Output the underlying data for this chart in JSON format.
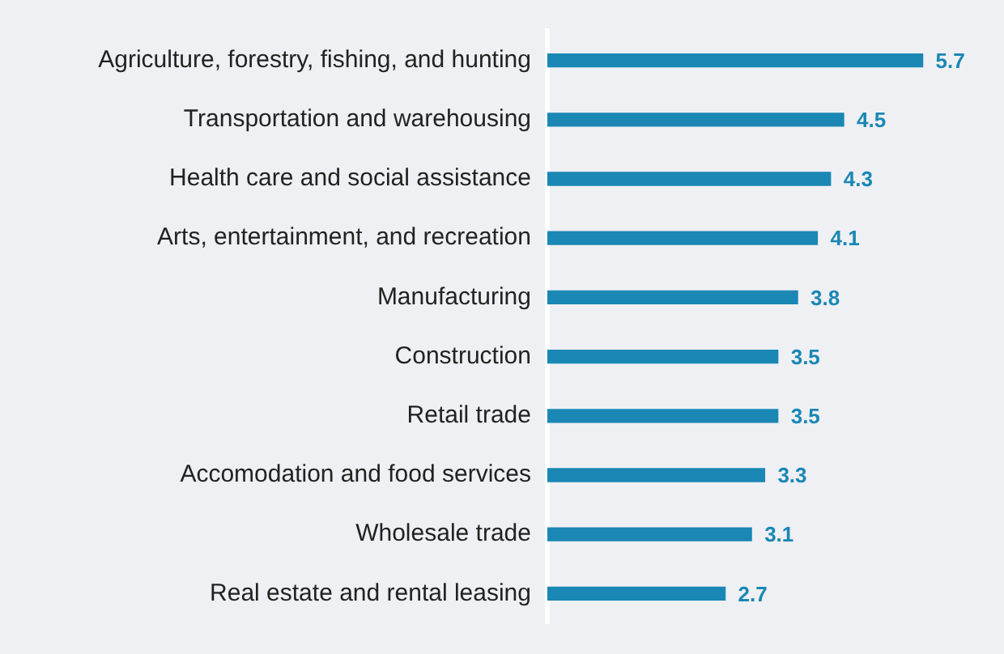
{
  "chart_data": {
    "type": "bar",
    "orientation": "horizontal",
    "categories": [
      "Agriculture, forestry, fishing, and hunting",
      "Transportation and warehousing",
      "Health care and social assistance",
      "Arts, entertainment, and recreation",
      "Manufacturing",
      "Construction",
      "Retail trade",
      "Accomodation and food services",
      "Wholesale trade",
      "Real estate and rental leasing"
    ],
    "values": [
      5.7,
      4.5,
      4.3,
      4.1,
      3.8,
      3.5,
      3.5,
      3.3,
      3.1,
      2.7
    ],
    "color": "#1a87b4",
    "grid": false,
    "legend": false,
    "data_labels": true,
    "tick_labels": "y"
  }
}
